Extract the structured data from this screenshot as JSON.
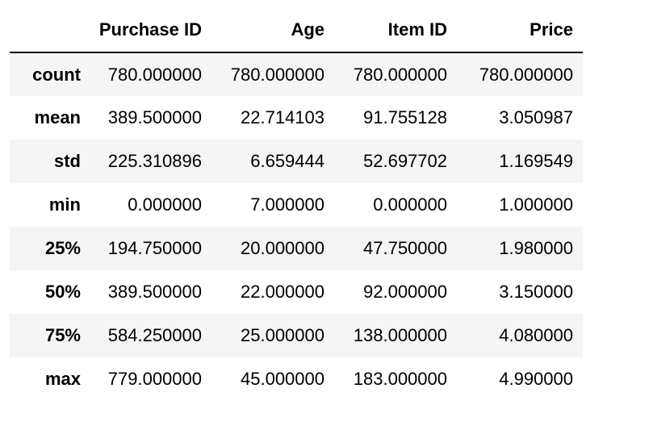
{
  "table": {
    "columns": [
      "Purchase ID",
      "Age",
      "Item ID",
      "Price"
    ],
    "rows": [
      {
        "label": "count",
        "values": [
          "780.000000",
          "780.000000",
          "780.000000",
          "780.000000"
        ]
      },
      {
        "label": "mean",
        "values": [
          "389.500000",
          "22.714103",
          "91.755128",
          "3.050987"
        ]
      },
      {
        "label": "std",
        "values": [
          "225.310896",
          "6.659444",
          "52.697702",
          "1.169549"
        ]
      },
      {
        "label": "min",
        "values": [
          "0.000000",
          "7.000000",
          "0.000000",
          "1.000000"
        ]
      },
      {
        "label": "25%",
        "values": [
          "194.750000",
          "20.000000",
          "47.750000",
          "1.980000"
        ]
      },
      {
        "label": "50%",
        "values": [
          "389.500000",
          "22.000000",
          "92.000000",
          "3.150000"
        ]
      },
      {
        "label": "75%",
        "values": [
          "584.250000",
          "25.000000",
          "138.000000",
          "4.080000"
        ]
      },
      {
        "label": "max",
        "values": [
          "779.000000",
          "45.000000",
          "183.000000",
          "4.990000"
        ]
      }
    ]
  },
  "colors": {
    "stripe": "#f5f5f5",
    "background": "#ffffff",
    "header_rule": "#000000"
  }
}
